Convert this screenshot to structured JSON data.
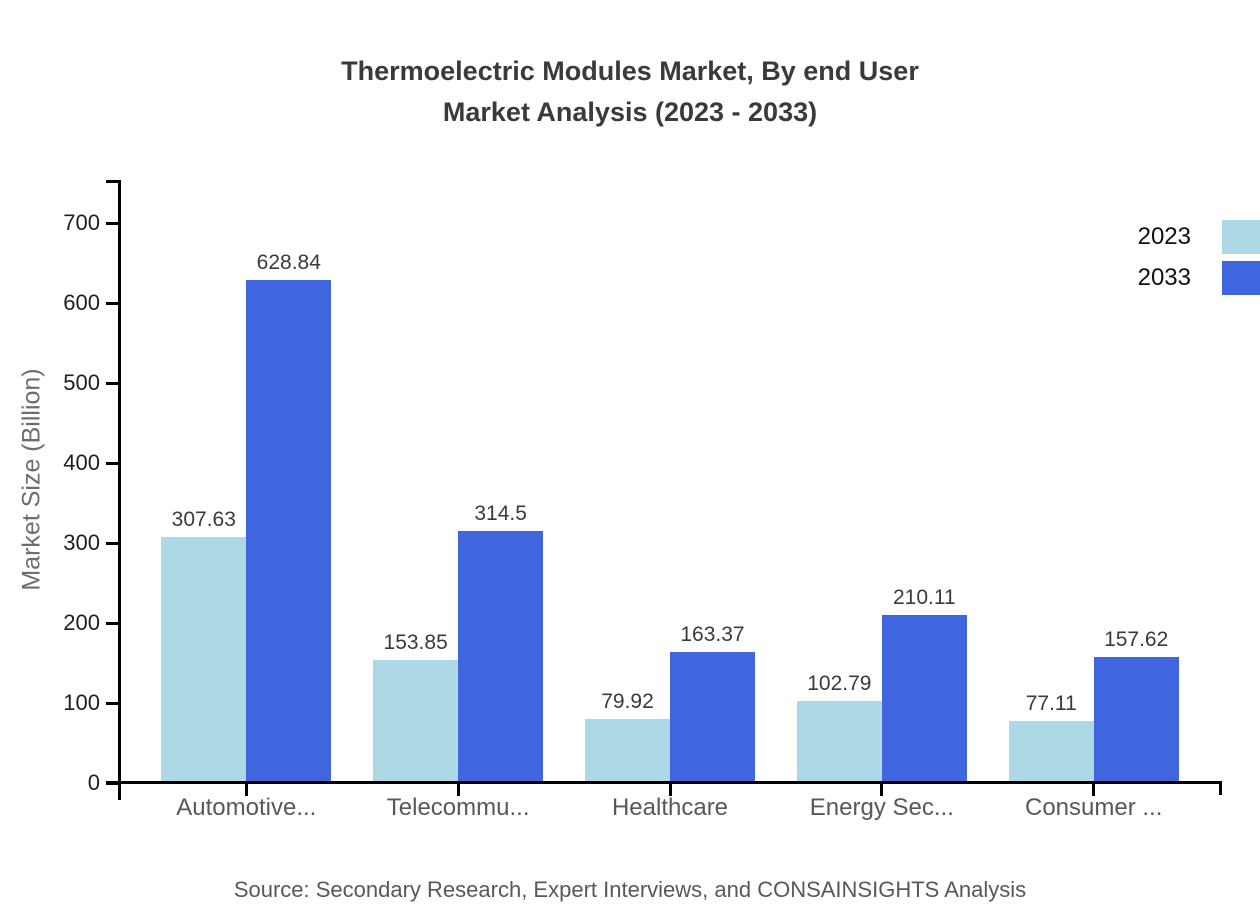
{
  "title": {
    "line1": "Thermoelectric Modules Market, By end User",
    "line2": "Market Analysis (2023 - 2033)"
  },
  "chart_data": {
    "type": "bar",
    "categories": [
      "Automotive...",
      "Telecommu...",
      "Healthcare",
      "Energy Sec...",
      "Consumer ..."
    ],
    "series": [
      {
        "name": "2023",
        "color": "#ADD8E6",
        "values": [
          307.63,
          153.85,
          79.92,
          102.79,
          77.11
        ]
      },
      {
        "name": "2033",
        "color": "#3F66DE",
        "values": [
          628.84,
          314.5,
          163.37,
          210.11,
          157.62
        ]
      }
    ],
    "xlabel": "",
    "ylabel": "Market Size (Billion)",
    "yticks": [
      0,
      100,
      200,
      300,
      400,
      500,
      600,
      700
    ],
    "ylim": [
      0,
      754
    ],
    "grid": false,
    "legend_position": "top-right",
    "value_labels": true
  },
  "source": "Source: Secondary Research, Expert Interviews, and CONSAINSIGHTS Analysis",
  "colors": {
    "series_2023": "#ADD8E6",
    "series_2033": "#3F66DE",
    "title_text": "#3A3A3A",
    "tick_text": "#1F1F1F",
    "muted_text": "#55595E",
    "ylabel_text": "#6E6E6E",
    "axis_line": "#000000"
  }
}
